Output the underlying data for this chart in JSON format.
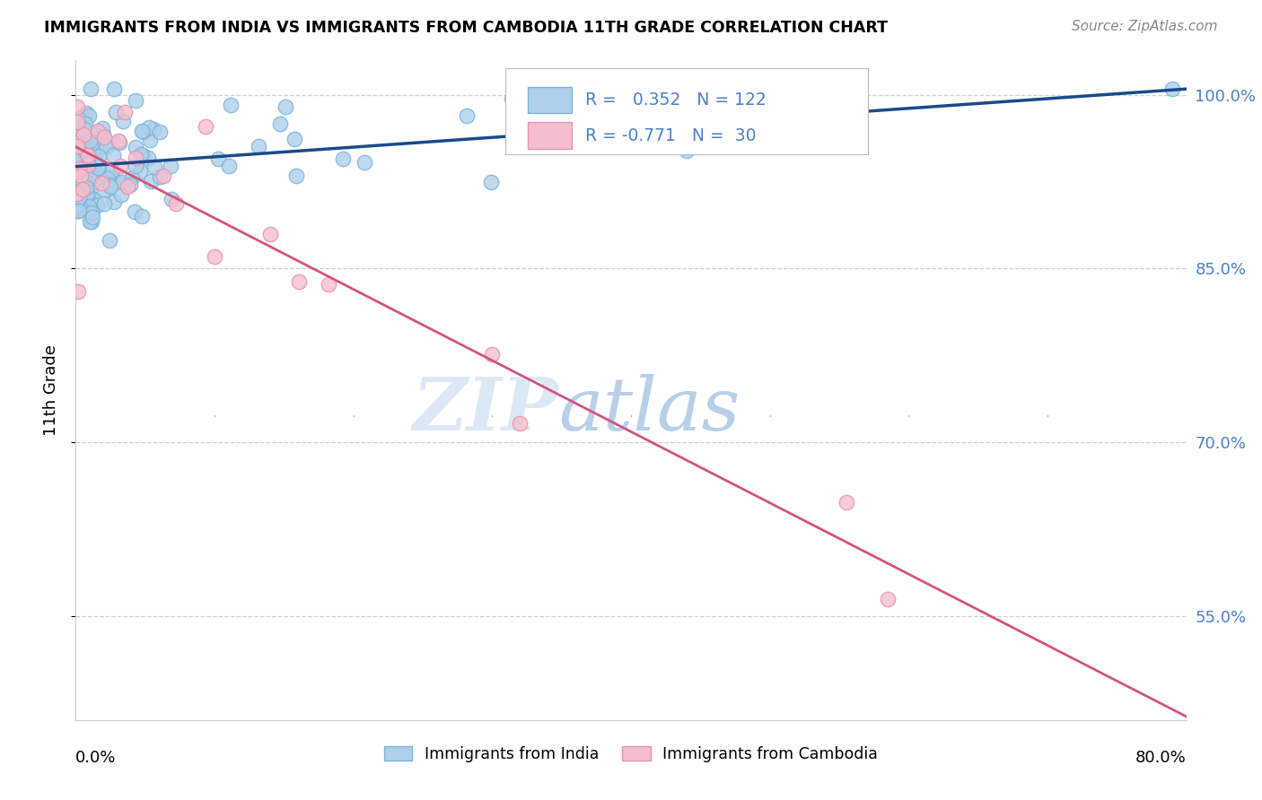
{
  "title": "IMMIGRANTS FROM INDIA VS IMMIGRANTS FROM CAMBODIA 11TH GRADE CORRELATION CHART",
  "source": "Source: ZipAtlas.com",
  "ylabel": "11th Grade",
  "xmin": 0.0,
  "xmax": 0.8,
  "ymin": 0.46,
  "ymax": 1.03,
  "ytick_values": [
    0.55,
    0.7,
    0.85,
    1.0
  ],
  "ytick_labels": [
    "55.0%",
    "70.0%",
    "85.0%",
    "100.0%"
  ],
  "india_color": "#7ab3d9",
  "india_color_fill": "#aed0ea",
  "cambodia_color": "#e891a8",
  "cambodia_color_fill": "#f5bece",
  "trend_india_color": "#1a4a8a",
  "trend_cambodia_color": "#d4547a",
  "legend_india_label": "Immigrants from India",
  "legend_cambodia_label": "Immigrants from Cambodia",
  "R_india": 0.352,
  "N_india": 122,
  "R_cambodia": -0.771,
  "N_cambodia": 30,
  "india_trend_x0": 0.0,
  "india_trend_y0": 0.938,
  "india_trend_x1": 0.8,
  "india_trend_y1": 1.005,
  "cambodia_trend_x0": 0.0,
  "cambodia_trend_y0": 0.955,
  "cambodia_trend_x1": 0.8,
  "cambodia_trend_y1": 0.463,
  "watermark_zip": "ZIP",
  "watermark_atlas": "atlas",
  "background_color": "#ffffff",
  "grid_color": "#d0d0d0",
  "right_axis_color": "#4a80c8",
  "title_fontsize": 12.5,
  "source_fontsize": 11,
  "tick_fontsize": 13
}
